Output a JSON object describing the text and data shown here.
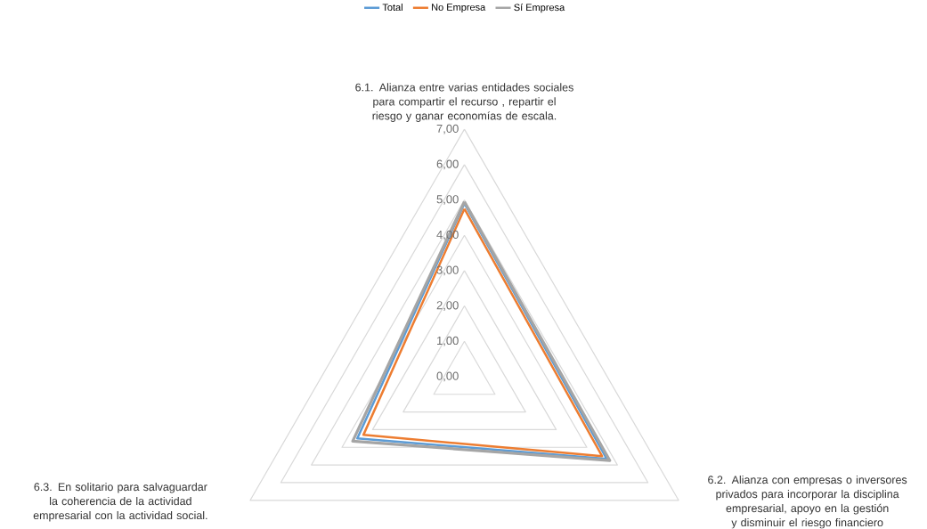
{
  "chart_data": {
    "type": "radar",
    "categories": [
      "6.1. Alianza entre varias entidades sociales para compartir el recurso , repartir el riesgo y ganar economías de escala.",
      "6.2. Alianza con empresas o inversores privados para incorporar la disciplina empresarial, apoyo en la gestión y disminuir el riesgo financiero",
      "6.3. En solitario para salvaguardar la coherencia de la actividad empresarial con la actividad social."
    ],
    "series": [
      {
        "name": "Total",
        "color": "#5b9bd5",
        "values": [
          4.9,
          4.65,
          3.5
        ]
      },
      {
        "name": "No Empresa",
        "color": "#ed7d31",
        "values": [
          4.75,
          4.5,
          3.3
        ]
      },
      {
        "name": "Sí Empresa",
        "color": "#a5a5a5",
        "values": [
          4.95,
          4.75,
          3.65
        ]
      }
    ],
    "ylim": [
      0,
      7
    ],
    "yticks": [
      {
        "value": 0,
        "label": "0,00"
      },
      {
        "value": 1,
        "label": "1,00"
      },
      {
        "value": 2,
        "label": "2,00"
      },
      {
        "value": 3,
        "label": "3,00"
      },
      {
        "value": 4,
        "label": "4,00"
      },
      {
        "value": 5,
        "label": "5,00"
      },
      {
        "value": 6,
        "label": "6,00"
      },
      {
        "value": 7,
        "label": "7,00"
      }
    ],
    "grid": true,
    "legend": "top"
  }
}
